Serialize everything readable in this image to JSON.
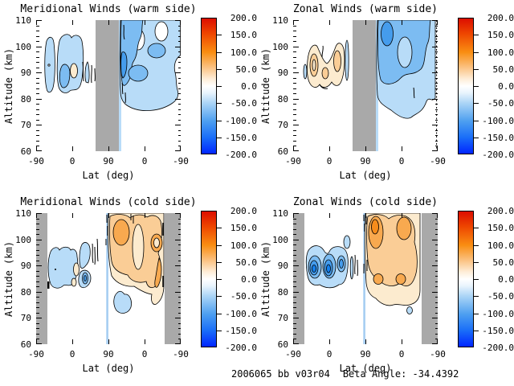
{
  "panels": [
    {
      "title": "Meridional Winds (warm side)"
    },
    {
      "title": "Zonal Winds (warm side)"
    },
    {
      "title": "Meridional Winds (cold side)"
    },
    {
      "title": "Zonal Winds (cold side)"
    }
  ],
  "axes": {
    "x_label": "Lat (deg)",
    "y_label": "Altitude (km)",
    "x_tick_labels": [
      "-90",
      "0",
      "90",
      "0",
      "-90"
    ],
    "y_tick_labels": [
      "110",
      "100",
      "90",
      "80",
      "70",
      "60"
    ]
  },
  "colorbar": {
    "tick_labels": [
      "200.0",
      "150.0",
      "100.0",
      "50.0",
      "0.0",
      "-50.0",
      "-100.0",
      "-150.0",
      "-200.0"
    ],
    "range": [
      -200,
      200
    ],
    "gradient": [
      "#DC0E00 0%",
      "#EE4500 11%",
      "#F98E12 25%",
      "#FBC180 36%",
      "#FEEEDA 45%",
      "#FFFFFF 50%",
      "#E9F4FD 55%",
      "#A9D3F6 63%",
      "#4D9FF0 76%",
      "#1A6EF8 88%",
      "#0026FF 100%"
    ]
  },
  "palette": {
    "gray": "#A9A9A9",
    "blue1": "#B8DCF8",
    "blue2": "#7CBCF2",
    "blue3": "#459CEC",
    "blue4": "#1480EE",
    "cream": "#FCEBCF",
    "orange1": "#FACD96",
    "orange2": "#F8A94F",
    "orange3": "#F68C1C",
    "vline_blue": "#A6CEF2",
    "line": "#000000"
  },
  "footer": {
    "dataset": "2006065 bb v03r04",
    "beta_angle": "Beta Angle: -34.4392"
  },
  "chart_data": [
    {
      "type": "heatmap",
      "subtype": "filled-contour",
      "title": "Meridional Winds (warm side)",
      "xlabel": "Lat (deg)",
      "ylabel": "Altitude (km)",
      "x_tick_labels": [
        -90,
        0,
        90,
        0,
        -90
      ],
      "x_axis_note": "latitude sweeps -90 to +90 (ascending node) then +90 back to -90 (descending node)",
      "ylim": [
        60,
        110
      ],
      "colorbar_range": [
        -200,
        200
      ],
      "colorbar_tick_step": 50,
      "contour_interval": 25,
      "no_data_gray_bands_xfrac": [
        [
          0.41,
          0.57
        ]
      ],
      "features": [
        {
          "side": "ascending",
          "value_range": [
            -50,
            -25
          ],
          "lat_range": [
            -65,
            45
          ],
          "alt_range": [
            82,
            103
          ],
          "note": "scattered weak negative patches"
        },
        {
          "side": "ascending",
          "value_range": [
            0,
            50
          ],
          "lat_range": [
            -8,
            8
          ],
          "alt_range": [
            86,
            94
          ],
          "note": "small positive (cream) spot"
        },
        {
          "side": "descending",
          "value_range": [
            -150,
            -25
          ],
          "lat_range": [
            60,
            -90
          ],
          "alt_range": [
            75,
            110
          ],
          "note": "broad negative region, strongest near lat 45 at 85-105 km, white holes near top"
        }
      ]
    },
    {
      "type": "heatmap",
      "subtype": "filled-contour",
      "title": "Zonal Winds (warm side)",
      "xlabel": "Lat (deg)",
      "ylabel": "Altitude (km)",
      "x_tick_labels": [
        -90,
        0,
        90,
        0,
        -90
      ],
      "ylim": [
        60,
        110
      ],
      "colorbar_range": [
        -200,
        200
      ],
      "contour_interval": 25,
      "no_data_gray_bands_xfrac": [
        [
          0.41,
          0.57
        ]
      ],
      "features": [
        {
          "side": "ascending",
          "value_range": [
            25,
            75
          ],
          "lat_range": [
            -55,
            25
          ],
          "alt_range": [
            84,
            100
          ],
          "note": "M-shaped positive (orange) cluster"
        },
        {
          "side": "descending",
          "value_range": [
            -150,
            -25
          ],
          "lat_range": [
            65,
            -85
          ],
          "alt_range": [
            72,
            110
          ],
          "note": "large negative region, darkest core near lat 55 at 98-108 km; dotted contour at far right edge"
        }
      ]
    },
    {
      "type": "heatmap",
      "subtype": "filled-contour",
      "title": "Meridional Winds (cold side)",
      "xlabel": "Lat (deg)",
      "ylabel": "Altitude (km)",
      "x_tick_labels": [
        -90,
        0,
        90,
        0,
        -90
      ],
      "ylim": [
        60,
        110
      ],
      "colorbar_range": [
        -200,
        200
      ],
      "contour_interval": 25,
      "no_data_gray_bands_xfrac": [
        [
          0.0,
          0.08
        ],
        [
          0.89,
          1.0
        ]
      ],
      "features": [
        {
          "side": "ascending",
          "value_range": [
            -75,
            -25
          ],
          "lat_range": [
            -60,
            55
          ],
          "alt_range": [
            80,
            103
          ],
          "note": "lumpy negative patches with small positive slivers"
        },
        {
          "side": "descending",
          "value_range": [
            25,
            100
          ],
          "lat_range": [
            88,
            -55
          ],
          "alt_range": [
            72,
            110
          ],
          "note": "broad positive (orange) region, strongest lobes near lat 70 and 40 at 95-110 km"
        },
        {
          "side": "descending",
          "value_range": [
            -50,
            -25
          ],
          "lat_range": [
            65,
            40
          ],
          "alt_range": [
            71,
            79
          ],
          "note": "small negative blob below the orange region"
        },
        {
          "side": "boundary",
          "value_range": [
            -25,
            0
          ],
          "lat_range": [
            90,
            90
          ],
          "alt_range": [
            60,
            110
          ],
          "note": "thin light-blue vertical line at lat 90 turnaround"
        }
      ]
    },
    {
      "type": "heatmap",
      "subtype": "filled-contour",
      "title": "Zonal Winds (cold side)",
      "xlabel": "Lat (deg)",
      "ylabel": "Altitude (km)",
      "x_tick_labels": [
        -90,
        0,
        90,
        0,
        -90
      ],
      "ylim": [
        60,
        110
      ],
      "colorbar_range": [
        -200,
        200
      ],
      "contour_interval": 25,
      "no_data_gray_bands_xfrac": [
        [
          0.0,
          0.08
        ],
        [
          0.89,
          1.0
        ]
      ],
      "features": [
        {
          "side": "ascending",
          "value_range": [
            -175,
            -25
          ],
          "lat_range": [
            -60,
            40
          ],
          "alt_range": [
            82,
            102
          ],
          "note": "rounded negative region with three nested dark-blue cores near lat -45, -10, 35"
        },
        {
          "side": "descending",
          "value_range": [
            25,
            125
          ],
          "lat_range": [
            88,
            -50
          ],
          "alt_range": [
            77,
            110
          ],
          "note": "broad positive (orange) region, deep orange cores near lat 60 at 100-110 km"
        },
        {
          "side": "descending",
          "value_range": [
            -50,
            -25
          ],
          "lat_range": [
            -5,
            -15
          ],
          "alt_range": [
            71,
            75
          ],
          "note": "tiny negative spot below orange region"
        }
      ]
    }
  ]
}
